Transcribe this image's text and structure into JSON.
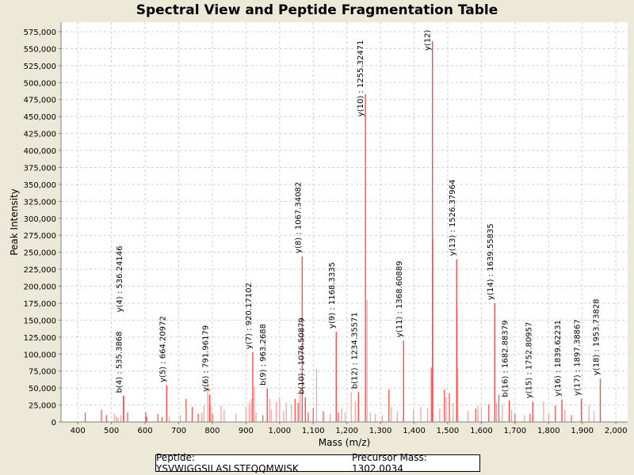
{
  "chart_data": {
    "type": "bar",
    "title": "Spectral View and Peptide Fragmentation Table",
    "xlabel": "Mass (m/z)",
    "ylabel": "Peak Intensity",
    "xlim": [
      350,
      2035
    ],
    "ylim": [
      0,
      589000
    ],
    "xticks": [
      400,
      500,
      600,
      700,
      800,
      900,
      1000,
      1100,
      1200,
      1300,
      1400,
      1500,
      1600,
      1700,
      1800,
      1900,
      2000
    ],
    "xtick_labels": [
      "400",
      "500",
      "600",
      "700",
      "800",
      "900",
      "1,000",
      "1,100",
      "1,200",
      "1,300",
      "1,400",
      "1,500",
      "1,600",
      "1,700",
      "1,800",
      "1,900",
      "2,000"
    ],
    "yticks": [
      0,
      25000,
      50000,
      75000,
      100000,
      125000,
      150000,
      175000,
      200000,
      225000,
      250000,
      275000,
      300000,
      325000,
      350000,
      375000,
      400000,
      425000,
      450000,
      475000,
      500000,
      525000,
      550000,
      575000
    ],
    "ytick_labels": [
      "0",
      "25,000",
      "50,000",
      "75,000",
      "100,000",
      "125,000",
      "150,000",
      "175,000",
      "200,000",
      "225,000",
      "250,000",
      "275,000",
      "300,000",
      "325,000",
      "350,000",
      "375,000",
      "400,000",
      "425,000",
      "450,000",
      "475,000",
      "500,000",
      "525,000",
      "550,000",
      "575,000"
    ],
    "grid": true,
    "annotated_peaks": [
      {
        "mz": 535.3,
        "intensity": 38000,
        "label": "b(4) : 535.3868"
      },
      {
        "mz": 536.2,
        "intensity": 38500,
        "label": "y(4) : 536.24146"
      },
      {
        "mz": 664.2,
        "intensity": 53600,
        "label": "y(5) : 664.20972"
      },
      {
        "mz": 792.0,
        "intensity": 40000,
        "label": "y(6) : 791.96179"
      },
      {
        "mz": 920.2,
        "intensity": 102600,
        "label": "y(7) : 920.17102"
      },
      {
        "mz": 963.3,
        "intensity": 49000,
        "label": "b(9) : 963.2688"
      },
      {
        "mz": 1067.3,
        "intensity": 243800,
        "label": "y(8) : 1067.34082"
      },
      {
        "mz": 1076.5,
        "intensity": 36000,
        "label": "b(10) : 1076.50879"
      },
      {
        "mz": 1168.3,
        "intensity": 133000,
        "label": "y(9) : 1168.3335"
      },
      {
        "mz": 1234.4,
        "intensity": 44000,
        "label": "b(12) : 1234.35571"
      },
      {
        "mz": 1255.3,
        "intensity": 483000,
        "label": "y(10) : 1255.32471"
      },
      {
        "mz": 1368.6,
        "intensity": 120000,
        "label": "y(11) : 1368.60889"
      },
      {
        "mz": 1454.5,
        "intensity": 561000,
        "label": "y(12)"
      },
      {
        "mz": 1526.4,
        "intensity": 240000,
        "label": "y(13) : 1526.37964"
      },
      {
        "mz": 1639.6,
        "intensity": 175000,
        "label": "y(14) : 1639.55835"
      },
      {
        "mz": 1682.9,
        "intensity": 32000,
        "label": "b(16) : 1682.88379"
      },
      {
        "mz": 1752.8,
        "intensity": 30000,
        "label": "y(15) : 1752.80957"
      },
      {
        "mz": 1839.6,
        "intensity": 33000,
        "label": "y(16) : 1839.62231"
      },
      {
        "mz": 1897.4,
        "intensity": 34000,
        "label": "y(17) : 1897.38867"
      },
      {
        "mz": 1953.7,
        "intensity": 64000,
        "label": "y(18) : 1953.73828"
      }
    ],
    "other_peaks": [
      [
        422,
        14000
      ],
      [
        470,
        18000
      ],
      [
        485,
        10000
      ],
      [
        508,
        12000
      ],
      [
        514,
        8000
      ],
      [
        520,
        6000
      ],
      [
        528,
        10000
      ],
      [
        548,
        14000
      ],
      [
        602,
        14000
      ],
      [
        605,
        8000
      ],
      [
        638,
        12000
      ],
      [
        650,
        7000
      ],
      [
        672,
        8000
      ],
      [
        705,
        10000
      ],
      [
        722,
        34000
      ],
      [
        740,
        22000
      ],
      [
        758,
        12000
      ],
      [
        768,
        14000
      ],
      [
        775,
        24000
      ],
      [
        786,
        59000
      ],
      [
        795,
        26000
      ],
      [
        800,
        12000
      ],
      [
        826,
        24000
      ],
      [
        835,
        18000
      ],
      [
        870,
        12000
      ],
      [
        900,
        22000
      ],
      [
        910,
        28000
      ],
      [
        916,
        34000
      ],
      [
        925,
        52000
      ],
      [
        930,
        14000
      ],
      [
        950,
        10000
      ],
      [
        970,
        34000
      ],
      [
        975,
        18000
      ],
      [
        990,
        30000
      ],
      [
        1000,
        36000
      ],
      [
        1012,
        16000
      ],
      [
        1020,
        28000
      ],
      [
        1035,
        26000
      ],
      [
        1046,
        34000
      ],
      [
        1055,
        28000
      ],
      [
        1060,
        40000
      ],
      [
        1085,
        14000
      ],
      [
        1100,
        20000
      ],
      [
        1110,
        78000
      ],
      [
        1130,
        16000
      ],
      [
        1150,
        12000
      ],
      [
        1175,
        14000
      ],
      [
        1185,
        20000
      ],
      [
        1195,
        14000
      ],
      [
        1213,
        44000
      ],
      [
        1225,
        30000
      ],
      [
        1260,
        180000
      ],
      [
        1270,
        14000
      ],
      [
        1285,
        12000
      ],
      [
        1305,
        10000
      ],
      [
        1325,
        48000
      ],
      [
        1332,
        22000
      ],
      [
        1350,
        16000
      ],
      [
        1398,
        18000
      ],
      [
        1420,
        22000
      ],
      [
        1440,
        20000
      ],
      [
        1451,
        80000
      ],
      [
        1456,
        270000
      ],
      [
        1476,
        20000
      ],
      [
        1490,
        48000
      ],
      [
        1495,
        36000
      ],
      [
        1505,
        42000
      ],
      [
        1516,
        28000
      ],
      [
        1528,
        168000
      ],
      [
        1530,
        80000
      ],
      [
        1560,
        16000
      ],
      [
        1583,
        20000
      ],
      [
        1590,
        24000
      ],
      [
        1600,
        22000
      ],
      [
        1622,
        26000
      ],
      [
        1645,
        28000
      ],
      [
        1652,
        40000
      ],
      [
        1662,
        26000
      ],
      [
        1690,
        18000
      ],
      [
        1700,
        12000
      ],
      [
        1728,
        10000
      ],
      [
        1745,
        12000
      ],
      [
        1785,
        30000
      ],
      [
        1800,
        12000
      ],
      [
        1820,
        24000
      ],
      [
        1848,
        18000
      ],
      [
        1868,
        10000
      ],
      [
        1920,
        24000
      ],
      [
        1935,
        16000
      ]
    ]
  },
  "legend": {
    "peptide": "Peptide: YSVWIGGSILASLSTFQQMWISK",
    "precursor": "Precursor Mass: 1302.0034"
  },
  "colors": {
    "peak": "#ff4a4a",
    "peak_light": "#ff9a9a",
    "grid": "#d0d0d0",
    "background": "#ece9d8"
  }
}
